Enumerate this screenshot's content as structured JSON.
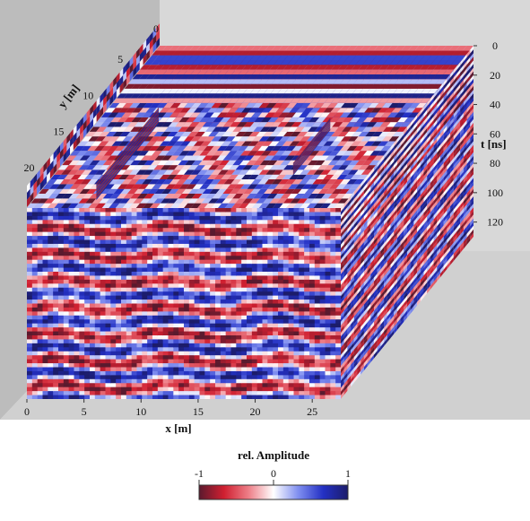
{
  "chart_data": {
    "type": "heatmap",
    "title": "",
    "x_axis": {
      "label": "x [m]",
      "ticks": [
        "0",
        "5",
        "10",
        "15",
        "20",
        "25"
      ],
      "range": [
        0,
        27.5
      ]
    },
    "y_axis": {
      "label": "y [m]",
      "ticks": [
        "5",
        "10",
        "15",
        "20"
      ],
      "range": [
        0,
        22.5
      ]
    },
    "t_axis": {
      "label": "t [ns]",
      "ticks": [
        "0",
        "20",
        "40",
        "60",
        "80",
        "100",
        "120"
      ],
      "range": [
        0,
        130
      ]
    },
    "colorbar": {
      "label": "rel. Amplitude",
      "ticks": [
        "-1",
        "0",
        "1"
      ],
      "range": [
        -1,
        1
      ],
      "colors": [
        "#5a1a2e",
        "#d01f30",
        "#ee7f88",
        "#ffffff",
        "#7f8ef0",
        "#2330c4",
        "#1c1c6a"
      ]
    },
    "colors": {
      "background_floor": "#cfcfcf",
      "background_wall_left": "#bdbdbd",
      "background_wall_right": "#d6d6d6",
      "red": "#d42a34",
      "blue": "#2b3fcf"
    }
  }
}
